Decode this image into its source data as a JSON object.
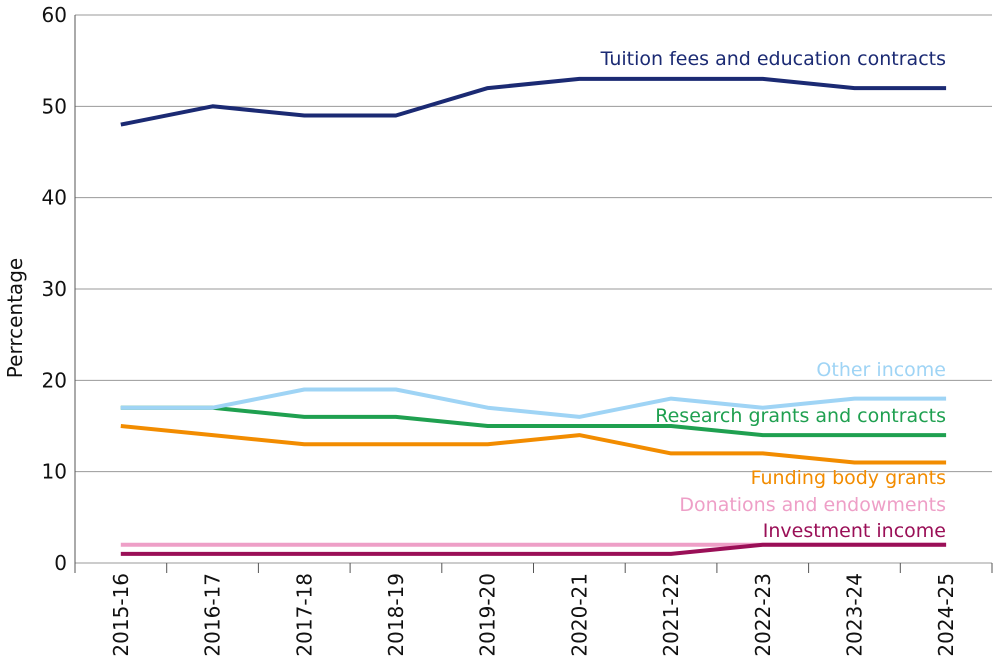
{
  "chart_data": {
    "type": "line",
    "ylabel": "Perrcentage",
    "xlabel": "",
    "ylim": [
      0,
      60
    ],
    "yticks": [
      0,
      10,
      20,
      30,
      40,
      50,
      60
    ],
    "grid": "horizontal",
    "categories": [
      "2015-16",
      "2016-17",
      "2017-18",
      "2018-19",
      "2019-20",
      "2020-21",
      "2021-22",
      "2022-23",
      "2023-24",
      "2024-25"
    ],
    "series": [
      {
        "name": "Donations and endowments",
        "color": "#ee9fc7",
        "values": [
          2,
          2,
          2,
          2,
          2,
          2,
          2,
          2,
          2,
          2
        ]
      },
      {
        "name": "Investment income",
        "color": "#9a0f57",
        "values": [
          1,
          1,
          1,
          1,
          1,
          1,
          1,
          2,
          2,
          2
        ]
      },
      {
        "name": "Funding body grants",
        "color": "#f28c00",
        "values": [
          15,
          14,
          13,
          13,
          13,
          14,
          12,
          12,
          11,
          11
        ]
      },
      {
        "name": "Research grants and contracts",
        "color": "#1fa050",
        "values": [
          17,
          17,
          16,
          16,
          15,
          15,
          15,
          14,
          14,
          14
        ]
      },
      {
        "name": "Other income",
        "color": "#9fd4f5",
        "values": [
          17,
          17,
          19,
          19,
          17,
          16,
          18,
          17,
          18,
          18
        ]
      },
      {
        "name": "Tuition fees and education contracts",
        "color": "#1b2a73",
        "values": [
          48,
          50,
          49,
          49,
          52,
          53,
          53,
          53,
          52,
          52
        ]
      }
    ]
  }
}
